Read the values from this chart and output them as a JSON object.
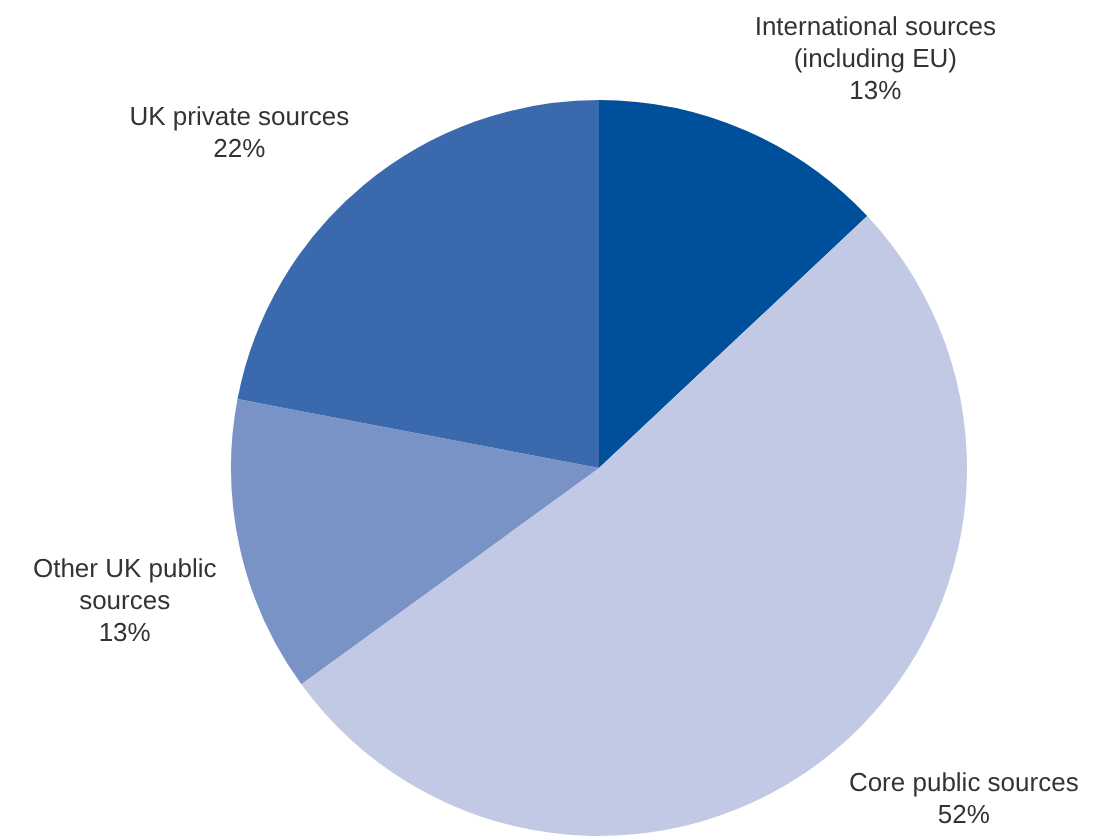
{
  "chart_data": {
    "type": "pie",
    "categories": [
      "International sources (including EU)",
      "Core public sources",
      "Other UK public sources",
      "UK private sources"
    ],
    "values": [
      13,
      52,
      13,
      22
    ],
    "value_labels": [
      "13%",
      "52%",
      "13%",
      "22%"
    ],
    "colors": [
      "#004f9a",
      "#c2c9e4",
      "#7a93c7",
      "#3a6aad"
    ],
    "legend": false
  }
}
